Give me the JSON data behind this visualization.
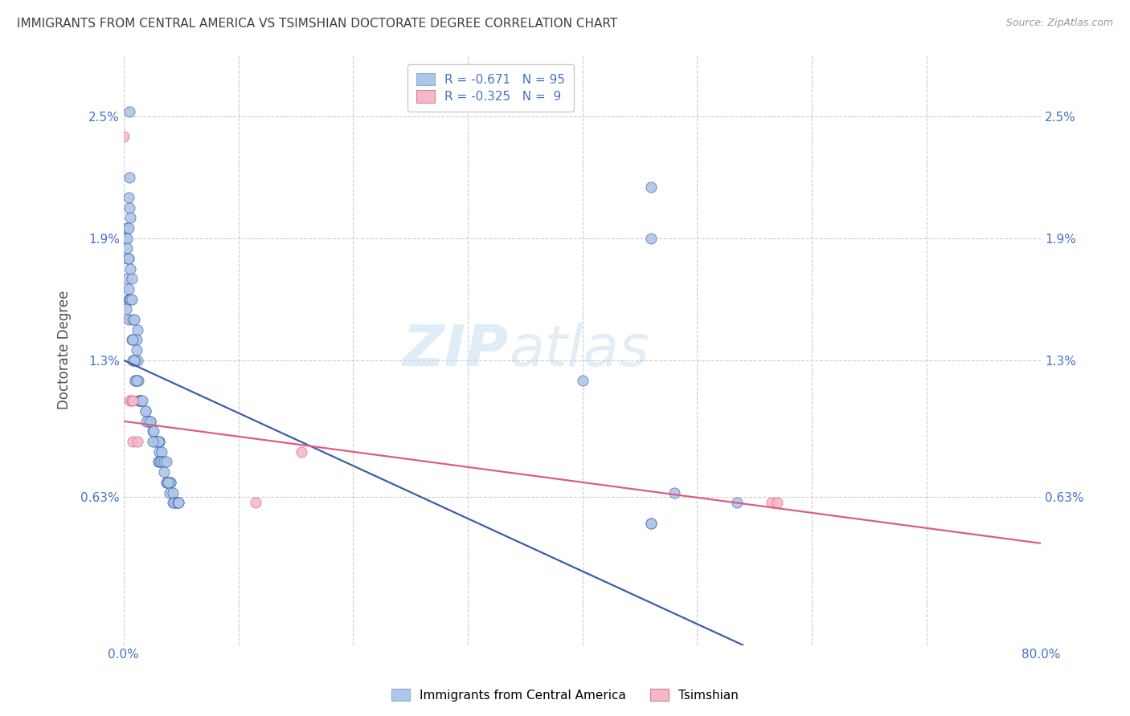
{
  "title": "IMMIGRANTS FROM CENTRAL AMERICA VS TSIMSHIAN DOCTORATE DEGREE CORRELATION CHART",
  "source": "Source: ZipAtlas.com",
  "ylabel": "Doctorate Degree",
  "yticks_labels": [
    "0.63%",
    "1.3%",
    "1.9%",
    "2.5%"
  ],
  "ytick_values": [
    0.0063,
    0.013,
    0.019,
    0.025
  ],
  "xlim": [
    0.0,
    0.8
  ],
  "ylim": [
    -0.001,
    0.028
  ],
  "legend_label1": "Immigrants from Central America",
  "legend_label2": "Tsimshian",
  "blue_color": "#aec6e8",
  "pink_color": "#f5b8c8",
  "line_blue": "#3a5fa8",
  "line_pink": "#d95f80",
  "title_color": "#404040",
  "axis_label_color": "#4472c4",
  "watermark_zip": "ZIP",
  "watermark_atlas": "atlas",
  "blue_scatter": [
    [
      0.005,
      0.0252
    ],
    [
      0.005,
      0.022
    ],
    [
      0.004,
      0.021
    ],
    [
      0.005,
      0.0205
    ],
    [
      0.006,
      0.02
    ],
    [
      0.003,
      0.0195
    ],
    [
      0.004,
      0.0195
    ],
    [
      0.002,
      0.019
    ],
    [
      0.003,
      0.019
    ],
    [
      0.003,
      0.0185
    ],
    [
      0.004,
      0.018
    ],
    [
      0.003,
      0.018
    ],
    [
      0.004,
      0.018
    ],
    [
      0.006,
      0.0175
    ],
    [
      0.003,
      0.017
    ],
    [
      0.007,
      0.017
    ],
    [
      0.004,
      0.0165
    ],
    [
      0.004,
      0.016
    ],
    [
      0.005,
      0.016
    ],
    [
      0.006,
      0.016
    ],
    [
      0.007,
      0.016
    ],
    [
      0.002,
      0.0155
    ],
    [
      0.004,
      0.015
    ],
    [
      0.008,
      0.015
    ],
    [
      0.009,
      0.015
    ],
    [
      0.008,
      0.014
    ],
    [
      0.012,
      0.0145
    ],
    [
      0.011,
      0.014
    ],
    [
      0.007,
      0.014
    ],
    [
      0.008,
      0.014
    ],
    [
      0.011,
      0.0135
    ],
    [
      0.012,
      0.013
    ],
    [
      0.009,
      0.013
    ],
    [
      0.008,
      0.013
    ],
    [
      0.009,
      0.013
    ],
    [
      0.01,
      0.012
    ],
    [
      0.01,
      0.012
    ],
    [
      0.012,
      0.012
    ],
    [
      0.013,
      0.012
    ],
    [
      0.011,
      0.012
    ],
    [
      0.015,
      0.011
    ],
    [
      0.014,
      0.011
    ],
    [
      0.013,
      0.011
    ],
    [
      0.014,
      0.011
    ],
    [
      0.015,
      0.011
    ],
    [
      0.016,
      0.011
    ],
    [
      0.019,
      0.0105
    ],
    [
      0.019,
      0.0105
    ],
    [
      0.021,
      0.01
    ],
    [
      0.023,
      0.01
    ],
    [
      0.022,
      0.01
    ],
    [
      0.02,
      0.01
    ],
    [
      0.023,
      0.01
    ],
    [
      0.025,
      0.0095
    ],
    [
      0.026,
      0.0095
    ],
    [
      0.027,
      0.009
    ],
    [
      0.029,
      0.009
    ],
    [
      0.031,
      0.009
    ],
    [
      0.031,
      0.009
    ],
    [
      0.03,
      0.009
    ],
    [
      0.025,
      0.009
    ],
    [
      0.031,
      0.0085
    ],
    [
      0.033,
      0.0085
    ],
    [
      0.03,
      0.008
    ],
    [
      0.03,
      0.008
    ],
    [
      0.033,
      0.008
    ],
    [
      0.032,
      0.008
    ],
    [
      0.033,
      0.008
    ],
    [
      0.035,
      0.008
    ],
    [
      0.037,
      0.008
    ],
    [
      0.035,
      0.0075
    ],
    [
      0.037,
      0.007
    ],
    [
      0.039,
      0.007
    ],
    [
      0.041,
      0.007
    ],
    [
      0.037,
      0.007
    ],
    [
      0.039,
      0.007
    ],
    [
      0.04,
      0.007
    ],
    [
      0.041,
      0.007
    ],
    [
      0.039,
      0.007
    ],
    [
      0.04,
      0.0065
    ],
    [
      0.043,
      0.0065
    ],
    [
      0.045,
      0.006
    ],
    [
      0.045,
      0.006
    ],
    [
      0.043,
      0.006
    ],
    [
      0.044,
      0.006
    ],
    [
      0.047,
      0.006
    ],
    [
      0.048,
      0.006
    ],
    [
      0.048,
      0.006
    ],
    [
      0.46,
      0.0215
    ],
    [
      0.46,
      0.019
    ],
    [
      0.4,
      0.012
    ],
    [
      0.48,
      0.0065
    ],
    [
      0.46,
      0.005
    ],
    [
      0.46,
      0.005
    ],
    [
      0.535,
      0.006
    ]
  ],
  "pink_scatter": [
    [
      0.0,
      0.024
    ],
    [
      0.005,
      0.011
    ],
    [
      0.007,
      0.011
    ],
    [
      0.008,
      0.011
    ],
    [
      0.008,
      0.009
    ],
    [
      0.012,
      0.009
    ],
    [
      0.155,
      0.0085
    ],
    [
      0.115,
      0.006
    ],
    [
      0.565,
      0.006
    ],
    [
      0.57,
      0.006
    ]
  ],
  "blue_line_x": [
    0.0,
    0.54
  ],
  "blue_line_y": [
    0.013,
    -0.001
  ],
  "pink_line_x": [
    0.0,
    0.8
  ],
  "pink_line_y": [
    0.01,
    0.004
  ]
}
